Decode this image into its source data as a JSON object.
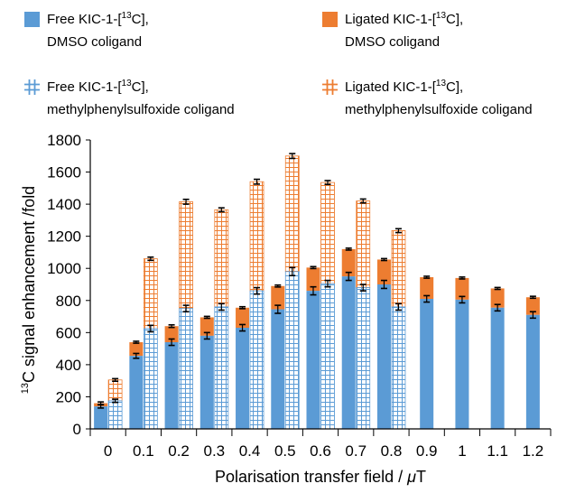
{
  "chart_data": {
    "type": "bar",
    "stacked": true,
    "xlabel_main": "Polarisation transfer field /",
    "xlabel_unit": "μT",
    "ylabel_sup": "13",
    "ylabel_rest": "C signal enhancement /fold",
    "ylim": [
      0,
      1800
    ],
    "yticks": [
      0,
      200,
      400,
      600,
      800,
      1000,
      1200,
      1400,
      1600,
      1800
    ],
    "categories": [
      "0",
      "0.1",
      "0.2",
      "0.3",
      "0.4",
      "0.5",
      "0.6",
      "0.7",
      "0.8",
      "0.9",
      "1",
      "1.1",
      "1.2"
    ],
    "colors": {
      "free": "#5b9bd5",
      "ligated": "#ed7d31",
      "free_hatch": "#5b9bd5",
      "ligated_hatch": "#ed7d31"
    },
    "legend": [
      {
        "key": "free_dmso",
        "line1": "Free KIC-1-[",
        "sup": "13",
        "line1_end": "C],",
        "line2": "DMSO coligand",
        "style": "solid-blue"
      },
      {
        "key": "lig_dmso",
        "line1": "Ligated KIC-1-[",
        "sup": "13",
        "line1_end": "C],",
        "line2": "DMSO coligand",
        "style": "solid-orange"
      },
      {
        "key": "free_mps",
        "line1": "Free KIC-1-[",
        "sup": "13",
        "line1_end": "C],",
        "line2": "methylphenylsulfoxide coligand",
        "style": "hatch-blue"
      },
      {
        "key": "lig_mps",
        "line1": "Ligated KIC-1-[",
        "sup": "13",
        "line1_end": "C],",
        "line2": "methylphenylsulfoxide coligand",
        "style": "hatch-orange"
      }
    ],
    "series": [
      {
        "name": "Free KIC-1-[13C], DMSO coligand",
        "free": [
          140,
          455,
          540,
          580,
          630,
          745,
          860,
          950,
          900,
          810,
          805,
          755,
          710
        ],
        "free_err": [
          10,
          15,
          20,
          20,
          20,
          25,
          25,
          25,
          25,
          20,
          20,
          20,
          20
        ]
      },
      {
        "name": "Ligated KIC-1-[13C], DMSO coligand",
        "total": [
          160,
          540,
          640,
          695,
          755,
          890,
          1005,
          1120,
          1055,
          945,
          940,
          875,
          820
        ],
        "total_err": [
          8,
          6,
          8,
          6,
          6,
          6,
          6,
          6,
          6,
          6,
          6,
          6,
          6
        ]
      },
      {
        "name": "Free KIC-1-[13C], methylphenylsulfoxide coligand",
        "free": [
          175,
          625,
          750,
          760,
          860,
          980,
          905,
          880,
          760,
          null,
          null,
          null,
          null
        ],
        "free_err": [
          10,
          20,
          20,
          20,
          20,
          25,
          20,
          20,
          20,
          null,
          null,
          null,
          null
        ]
      },
      {
        "name": "Ligated KIC-1-[13C], methylphenylsulfoxide coligand",
        "total": [
          305,
          1060,
          1415,
          1365,
          1540,
          1700,
          1535,
          1420,
          1235,
          null,
          null,
          null,
          null
        ],
        "total_err": [
          8,
          10,
          15,
          12,
          15,
          15,
          12,
          12,
          12,
          null,
          null,
          null,
          null
        ]
      }
    ]
  }
}
